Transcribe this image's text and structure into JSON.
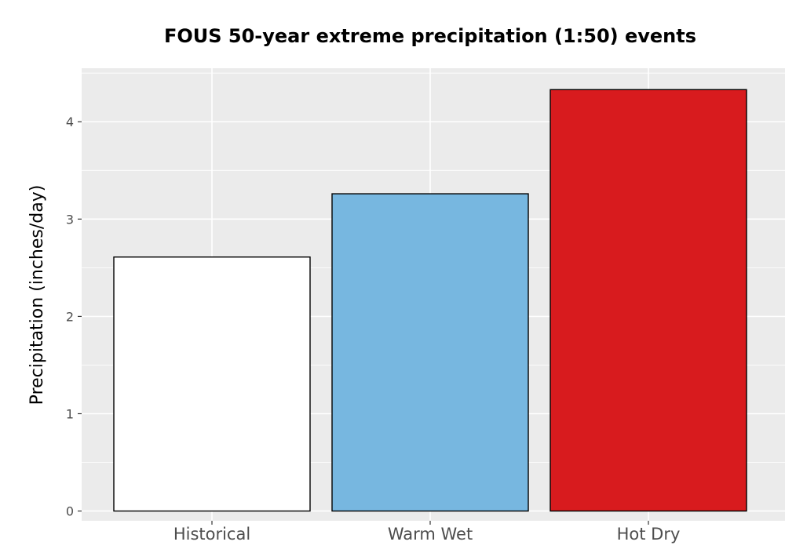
{
  "chart_data": {
    "type": "bar",
    "title": "FOUS 50-year extreme precipitation (1:50) events",
    "xlabel": "",
    "ylabel": "Precipitation (inches/day)",
    "categories": [
      "Historical",
      "Warm Wet",
      "Hot Dry"
    ],
    "values": [
      2.61,
      3.26,
      4.33
    ],
    "colors": [
      "#ffffff",
      "#77b7e0",
      "#d81b1e"
    ],
    "bar_outline": "#000000",
    "panel_background": "#ebebeb",
    "grid_color": "#ffffff",
    "grid": true,
    "legend": "none",
    "ylim": [
      -0.1,
      4.55
    ],
    "yticks": [
      0,
      1,
      2,
      3,
      4
    ],
    "ytick_labels": [
      "0",
      "1",
      "2",
      "3",
      "4"
    ]
  }
}
